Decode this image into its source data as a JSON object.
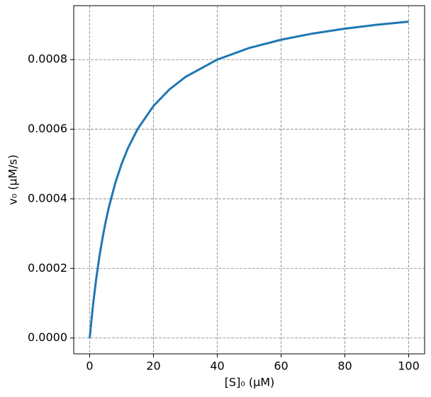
{
  "chart_data": {
    "type": "line",
    "xlabel": "[S]₀ (μM)",
    "ylabel": "v₀ (μM/s)",
    "x": [
      0,
      1,
      2,
      3,
      4,
      5,
      6,
      8,
      10,
      12,
      15,
      20,
      25,
      30,
      40,
      50,
      60,
      70,
      80,
      90,
      100
    ],
    "series": [
      {
        "name": "v0",
        "color": "#1f77b4",
        "values": [
          0,
          9.09e-05,
          0.0001667,
          0.0002308,
          0.0002857,
          0.0003333,
          0.000375,
          0.0004444,
          0.0005,
          0.0005455,
          0.0006,
          0.0006667,
          0.0007143,
          0.00075,
          0.0008,
          0.0008333,
          0.0008571,
          0.000875,
          0.0008889,
          0.0009,
          0.0009091
        ]
      }
    ],
    "xlim": [
      -5,
      105
    ],
    "ylim": [
      -4.55e-05,
      0.000955
    ],
    "xticks": [
      0,
      20,
      40,
      60,
      80,
      100
    ],
    "yticks": [
      {
        "value": 0,
        "label": "0.0000"
      },
      {
        "value": 0.0002,
        "label": "0.0002"
      },
      {
        "value": 0.0004,
        "label": "0.0004"
      },
      {
        "value": 0.0006,
        "label": "0.0006"
      },
      {
        "value": 0.0008,
        "label": "0.0008"
      }
    ],
    "grid": true
  }
}
